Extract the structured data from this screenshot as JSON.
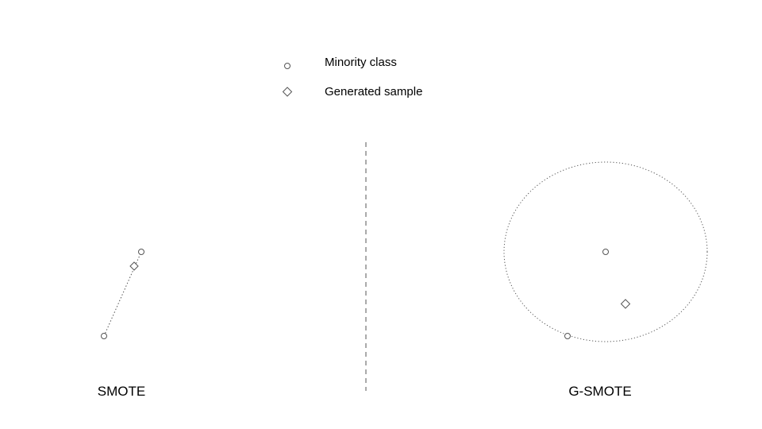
{
  "legend": {
    "items": [
      {
        "label": "Minority class",
        "marker": "circle"
      },
      {
        "label": "Generated sample",
        "marker": "diamond"
      }
    ]
  },
  "panels": {
    "left": {
      "label": "SMOTE"
    },
    "right": {
      "label": "G-SMOTE"
    }
  },
  "colors": {
    "marker_stroke": "#555555",
    "line": "#555555",
    "text": "#000000",
    "background": "#ffffff"
  }
}
